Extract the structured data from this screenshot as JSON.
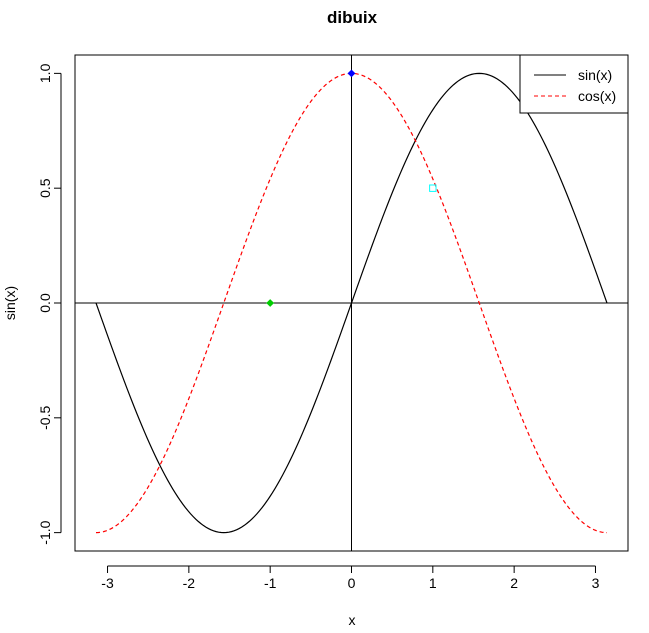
{
  "chart_data": {
    "type": "line",
    "title": "dibuix",
    "xlabel": "x",
    "ylabel": "sin(x)",
    "xlim": [
      -3.4,
      3.4
    ],
    "ylim": [
      -1.08,
      1.08
    ],
    "x_ticks": [
      -3,
      -2,
      -1,
      0,
      1,
      2,
      3
    ],
    "x_tick_labels": [
      "-3",
      "-2",
      "-1",
      "0",
      "1",
      "2",
      "3"
    ],
    "y_ticks": [
      -1.0,
      -0.5,
      0.0,
      0.5,
      1.0
    ],
    "y_tick_labels": [
      "-1.0",
      "-0.5",
      "0.0",
      "0.5",
      "1.0"
    ],
    "grid": false,
    "legend_position": "top-right",
    "reference_lines": [
      {
        "orientation": "horizontal",
        "value": 0,
        "color": "#000000"
      },
      {
        "orientation": "vertical",
        "value": 0,
        "color": "#000000"
      }
    ],
    "series": [
      {
        "name": "sin(x)",
        "function": "sin",
        "x_range": [
          -3.14159,
          3.14159
        ],
        "color": "#000000",
        "line_style": "solid",
        "x": [
          -3.142,
          -2.356,
          -1.571,
          -0.785,
          0.0,
          0.785,
          1.571,
          2.356,
          3.142
        ],
        "y": [
          0.0,
          -0.707,
          -1.0,
          -0.707,
          0.0,
          0.707,
          1.0,
          0.707,
          0.0
        ]
      },
      {
        "name": "cos(x)",
        "function": "cos",
        "x_range": [
          -3.14159,
          3.14159
        ],
        "color": "#ff0000",
        "line_style": "dashed",
        "x": [
          -3.142,
          -2.356,
          -1.571,
          -0.785,
          0.0,
          0.785,
          1.571,
          2.356,
          3.142
        ],
        "y": [
          -1.0,
          -0.707,
          0.0,
          0.707,
          1.0,
          0.707,
          0.0,
          -0.707,
          -1.0
        ]
      }
    ],
    "points": [
      {
        "x": 0,
        "y": 1,
        "color": "#0000ff",
        "shape": "diamond"
      },
      {
        "x": -1,
        "y": 0,
        "color": "#00cd00",
        "shape": "diamond"
      },
      {
        "x": 1,
        "y": 0.5,
        "color": "#00ffff",
        "shape": "square-open"
      }
    ]
  }
}
